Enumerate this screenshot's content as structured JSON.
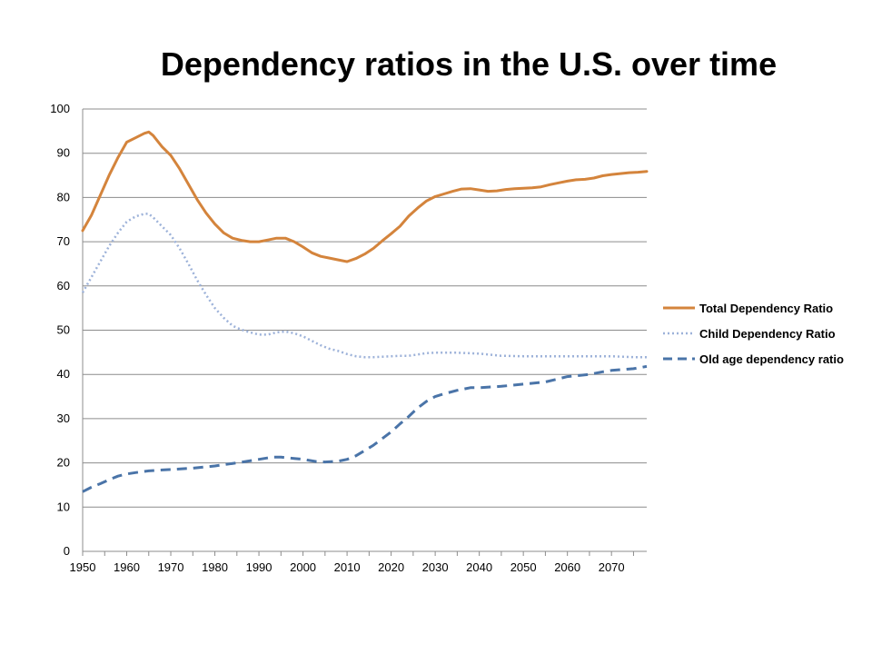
{
  "chart_data": {
    "type": "line",
    "title": "Dependency ratios in the U.S. over time",
    "xlabel": "",
    "ylabel": "",
    "xlim": [
      1950,
      2078
    ],
    "ylim": [
      0,
      100
    ],
    "yticks": [
      0,
      10,
      20,
      30,
      40,
      50,
      60,
      70,
      80,
      90,
      100
    ],
    "xticks": [
      1950,
      1960,
      1970,
      1980,
      1990,
      2000,
      2010,
      2020,
      2030,
      2040,
      2050,
      2060,
      2070
    ],
    "grid": true,
    "legend_position": "right",
    "series": [
      {
        "name": "Total Dependency Ratio",
        "color": "#D4843C",
        "style": "solid",
        "x": [
          1950,
          1952,
          1954,
          1956,
          1958,
          1960,
          1962,
          1964,
          1965,
          1966,
          1968,
          1970,
          1972,
          1974,
          1976,
          1978,
          1980,
          1982,
          1984,
          1986,
          1988,
          1990,
          1992,
          1994,
          1996,
          1998,
          2000,
          2002,
          2004,
          2006,
          2008,
          2010,
          2012,
          2014,
          2016,
          2018,
          2020,
          2022,
          2024,
          2026,
          2028,
          2030,
          2032,
          2034,
          2036,
          2038,
          2040,
          2042,
          2044,
          2046,
          2048,
          2050,
          2052,
          2054,
          2056,
          2058,
          2060,
          2062,
          2064,
          2066,
          2068,
          2070,
          2072,
          2074,
          2076,
          2078
        ],
        "values": [
          72.5,
          76,
          80.5,
          85,
          89,
          92.5,
          93.5,
          94.5,
          94.8,
          94,
          91.5,
          89.5,
          86.5,
          83,
          79.5,
          76.5,
          74,
          72,
          70.8,
          70.3,
          70,
          70,
          70.4,
          70.8,
          70.8,
          70,
          68.8,
          67.5,
          66.7,
          66.3,
          65.9,
          65.5,
          66.2,
          67.2,
          68.5,
          70.2,
          71.8,
          73.5,
          75.8,
          77.6,
          79.2,
          80.2,
          80.8,
          81.4,
          81.9,
          82,
          81.7,
          81.4,
          81.5,
          81.8,
          82,
          82.1,
          82.2,
          82.4,
          82.9,
          83.3,
          83.7,
          84,
          84.1,
          84.4,
          84.9,
          85.2,
          85.4,
          85.6,
          85.7,
          85.9
        ]
      },
      {
        "name": "Child Dependency Ratio",
        "color": "#9DB2D9",
        "style": "dotted",
        "x": [
          1950,
          1952,
          1954,
          1956,
          1958,
          1960,
          1962,
          1964,
          1965,
          1966,
          1968,
          1970,
          1972,
          1974,
          1976,
          1978,
          1980,
          1982,
          1984,
          1986,
          1988,
          1990,
          1992,
          1994,
          1996,
          1998,
          2000,
          2002,
          2004,
          2006,
          2008,
          2010,
          2012,
          2014,
          2016,
          2018,
          2020,
          2022,
          2024,
          2026,
          2028,
          2030,
          2035,
          2040,
          2045,
          2050,
          2055,
          2060,
          2065,
          2070,
          2075,
          2078
        ],
        "values": [
          58.5,
          62,
          65.5,
          69,
          72,
          74.5,
          75.7,
          76.3,
          76.3,
          75.5,
          73.5,
          71.5,
          68.5,
          65,
          61.3,
          58,
          55,
          52.8,
          51,
          50.1,
          49.5,
          49,
          49,
          49.5,
          49.7,
          49.3,
          48.6,
          47.6,
          46.6,
          45.8,
          45.3,
          44.6,
          44.1,
          43.9,
          43.9,
          44,
          44.1,
          44.2,
          44.2,
          44.5,
          44.8,
          44.9,
          44.9,
          44.7,
          44.2,
          44.1,
          44.1,
          44.1,
          44.1,
          44.1,
          43.9,
          43.9
        ]
      },
      {
        "name": "Old age dependency ratio",
        "color": "#4A74A8",
        "style": "dashed",
        "x": [
          1950,
          1952,
          1954,
          1956,
          1958,
          1960,
          1962,
          1965,
          1968,
          1970,
          1975,
          1980,
          1985,
          1990,
          1993,
          1995,
          1998,
          2000,
          2003,
          2005,
          2008,
          2010,
          2012,
          2014,
          2016,
          2018,
          2020,
          2022,
          2024,
          2026,
          2028,
          2030,
          2032,
          2035,
          2038,
          2040,
          2045,
          2050,
          2055,
          2060,
          2065,
          2068,
          2070,
          2075,
          2078
        ],
        "values": [
          13.5,
          14.5,
          15.3,
          16.2,
          17,
          17.5,
          17.8,
          18.2,
          18.4,
          18.5,
          18.8,
          19.3,
          20,
          20.8,
          21.3,
          21.3,
          21,
          20.8,
          20.3,
          20.2,
          20.4,
          20.8,
          21.6,
          22.8,
          24,
          25.5,
          27,
          28.8,
          30.5,
          32.4,
          33.9,
          35,
          35.6,
          36.4,
          37,
          37,
          37.3,
          37.8,
          38.3,
          39.5,
          40,
          40.6,
          40.9,
          41.3,
          41.8
        ]
      }
    ]
  }
}
